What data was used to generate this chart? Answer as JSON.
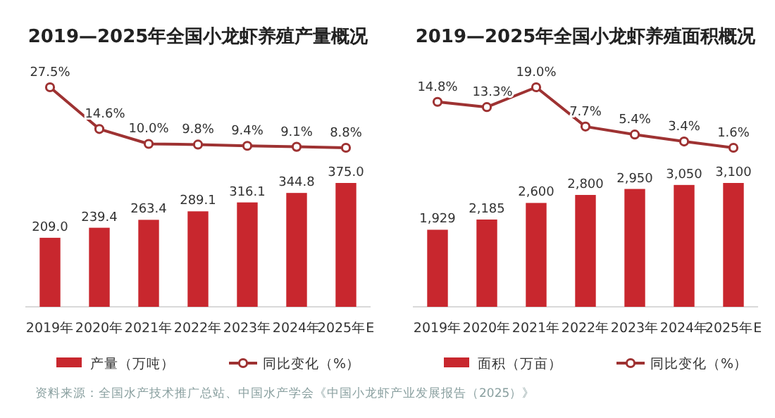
{
  "chart_data": [
    {
      "type": "bar",
      "categories": [
        "2019年",
        "2020年",
        "2021年",
        "2022年",
        "2023年",
        "2024年",
        "2025年E"
      ],
      "legend": "bottom",
      "data_labels": true,
      "series": [
        {
          "name": "产量（万吨）",
          "color": "#c8272e",
          "values": [
            209.0,
            239.4,
            263.4,
            289.1,
            316.1,
            344.8,
            375.0
          ],
          "value_labels": [
            "209.0",
            "239.4",
            "263.4",
            "289.1",
            "316.1",
            "344.8",
            "375.0"
          ]
        }
      ],
      "annotations": [
        "资料来源：全国水产技术推广总站、中国水产学会《中国小龙虾产业发展报告（2025）》"
      ]
    },
    {
      "type": "line",
      "title": "2019—2025年全国小龙虾养殖产量概况",
      "categories": [
        null,
        null,
        null,
        null,
        null,
        null,
        null
      ],
      "legend": "bottom",
      "data_labels": true,
      "marker": "circle",
      "series": [
        {
          "name": "同比变化（%）",
          "color": "#9e3232",
          "values": [
            27.5,
            14.6,
            10.0,
            9.8,
            9.4,
            9.1,
            8.8
          ],
          "value_labels": [
            "27.5%",
            "14.6%",
            "10.0%",
            "9.8%",
            "9.4%",
            "9.1%",
            "8.8%"
          ]
        }
      ]
    },
    {
      "type": "bar",
      "categories": [
        "2019年",
        "2020年",
        "2021年",
        "2022年",
        "2023年",
        "2024年",
        "2025年E"
      ],
      "legend": "bottom",
      "data_labels": true,
      "series": [
        {
          "name": "面积（万亩）",
          "color": "#c8272e",
          "values": [
            1929,
            2185,
            2600,
            2800,
            2950,
            3050,
            3100
          ],
          "value_labels": [
            "1,929",
            "2,185",
            "2,600",
            "2,800",
            "2,950",
            "3,050",
            "3,100"
          ]
        }
      ]
    },
    {
      "type": "line",
      "title": "2019—2025年全国小龙虾养殖面积概况",
      "categories": [
        null,
        null,
        null,
        null,
        null,
        null,
        null
      ],
      "legend": "bottom",
      "data_labels": true,
      "marker": "circle",
      "series": [
        {
          "name": "同比变化（%）",
          "color": "#9e3232",
          "values": [
            14.8,
            13.3,
            19.0,
            7.7,
            5.4,
            3.4,
            1.6
          ],
          "value_labels": [
            "14.8%",
            "13.3%",
            "19.0%",
            "7.7%",
            "5.4%",
            "3.4%",
            "1.6%"
          ]
        }
      ]
    }
  ]
}
